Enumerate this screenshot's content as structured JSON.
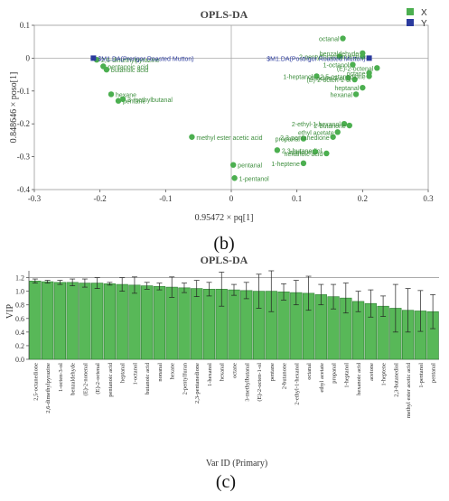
{
  "colors": {
    "points": "#4caf50",
    "bars": "#58b858",
    "bar_stroke": "#2e7d32",
    "highlight": "#2b3b9e",
    "axis": "#333333",
    "label": "#3f8f3f",
    "title": "#444444"
  },
  "panel_b": {
    "title": "OPLS-DA",
    "panel_label": "(b)",
    "legend": [
      {
        "name": "X",
        "color": "#4caf50"
      },
      {
        "name": "Y",
        "color": "#2b3b9e"
      }
    ]
  },
  "panel_c": {
    "title": "OPLS-DA",
    "panel_label": "(c)"
  },
  "chart_data": [
    {
      "type": "scatter",
      "title": "OPLS-DA",
      "xlabel": "0.95472 × pq[1]",
      "ylabel": "0.848646 × poso[1]",
      "xlim": [
        -0.3,
        0.3
      ],
      "ylim": [
        -0.4,
        0.1
      ],
      "xticks": [
        -0.3,
        -0.2,
        -0.1,
        0,
        0.1,
        0.2,
        0.3
      ],
      "yticks": [
        0.1,
        0,
        -0.1,
        -0.2,
        -0.3,
        -0.4
      ],
      "legend": "top-right",
      "points": [
        {
          "label": "2,6-dimethylpyrazine",
          "x": -0.205,
          "y": -0.005,
          "series": "X"
        },
        {
          "label": "pentanoic acid",
          "x": -0.195,
          "y": -0.025,
          "series": "X"
        },
        {
          "label": "butanoic acid",
          "x": -0.19,
          "y": -0.035,
          "series": "X"
        },
        {
          "label": "hexane",
          "x": -0.183,
          "y": -0.11,
          "series": "X"
        },
        {
          "label": "pentane",
          "x": -0.172,
          "y": -0.13,
          "series": "X"
        },
        {
          "label": "3-methylbutanal",
          "x": -0.165,
          "y": -0.125,
          "series": "X"
        },
        {
          "label": "methyl ester acetic acid",
          "x": -0.06,
          "y": -0.24,
          "series": "X"
        },
        {
          "label": "pentanal",
          "x": 0.003,
          "y": -0.325,
          "series": "X"
        },
        {
          "label": "1-pentanol",
          "x": 0.005,
          "y": -0.365,
          "series": "X"
        },
        {
          "label": "2,3-butanediol",
          "x": 0.07,
          "y": -0.28,
          "series": "X"
        },
        {
          "label": "propanal",
          "x": 0.11,
          "y": -0.245,
          "series": "X"
        },
        {
          "label": "1-heptene",
          "x": 0.11,
          "y": -0.32,
          "series": "X"
        },
        {
          "label": "acetone",
          "x": 0.128,
          "y": -0.285,
          "series": "X"
        },
        {
          "label": "hexanoic acid",
          "x": 0.145,
          "y": -0.29,
          "series": "X"
        },
        {
          "label": "2,3-pentanedione",
          "x": 0.155,
          "y": -0.24,
          "series": "X"
        },
        {
          "label": "ethyl acetate",
          "x": 0.162,
          "y": -0.225,
          "series": "X"
        },
        {
          "label": "2-ethyl-1-hexanol",
          "x": 0.172,
          "y": -0.2,
          "series": "X"
        },
        {
          "label": "2-butanone",
          "x": 0.18,
          "y": -0.205,
          "series": "X"
        },
        {
          "label": "octanal",
          "x": 0.17,
          "y": 0.06,
          "series": "X"
        },
        {
          "label": "2-pentylfuran",
          "x": 0.165,
          "y": 0.005,
          "series": "X"
        },
        {
          "label": "nonanal",
          "x": 0.2,
          "y": 0.005,
          "series": "X"
        },
        {
          "label": "1-heptanol",
          "x": 0.13,
          "y": -0.055,
          "series": "X"
        },
        {
          "label": "1-octen-3-ol",
          "x": 0.178,
          "y": -0.06,
          "series": "X"
        },
        {
          "label": "(E)-2-octen-1-ol",
          "x": 0.188,
          "y": -0.065,
          "series": "X"
        },
        {
          "label": "2,5-octanedione",
          "x": 0.21,
          "y": -0.055,
          "series": "X"
        },
        {
          "label": "heptanal",
          "x": 0.2,
          "y": -0.09,
          "series": "X"
        },
        {
          "label": "hexanal",
          "x": 0.19,
          "y": -0.11,
          "series": "X"
        },
        {
          "label": "(E)-2-octenal",
          "x": 0.222,
          "y": -0.03,
          "series": "X"
        },
        {
          "label": "benzaldehyde",
          "x": 0.2,
          "y": 0.015,
          "series": "X"
        },
        {
          "label": "octane",
          "x": 0.21,
          "y": -0.045,
          "series": "X"
        },
        {
          "label": "1-octanol",
          "x": 0.185,
          "y": -0.02,
          "series": "X"
        },
        {
          "label": "$M1.DA(Prerigor Roasted Mutton)",
          "x": -0.21,
          "y": 0.0,
          "series": "Y"
        },
        {
          "label": "$M1.DA(Postrigor Roasted Mutton)",
          "x": 0.21,
          "y": 0.0,
          "series": "Y"
        }
      ]
    },
    {
      "type": "bar",
      "title": "OPLS-DA",
      "xlabel": "Var ID (Primary)",
      "ylabel": "VIP",
      "ylim": [
        0,
        1.3
      ],
      "yticks": [
        0,
        0.2,
        0.4,
        0.6,
        0.8,
        1.0,
        1.2
      ],
      "reference_line": 1.2,
      "categories": [
        "2,5-octanedione",
        "2,6-dimethylpyrazine",
        "1-octen-3-ol",
        "benzaldehyde",
        "(E)-2-nonenal",
        "(E)-2-octenal",
        "pentanoic acid",
        "heptanal",
        "1-octanol",
        "butanoic acid",
        "nonanal",
        "hexane",
        "2-pentylfuran",
        "2,3-pentanedione",
        "1-hexanol",
        "hexanal",
        "octane",
        "3-methylbutanal",
        "(E)-2-octen-1-ol",
        "pentane",
        "2-butanone",
        "2-ethyl-1-hexanol",
        "octanal",
        "ethyl acetate",
        "propanal",
        "1-heptanol",
        "hexanoic acid",
        "acetone",
        "1-heptene",
        "2,3-butanediol",
        "methyl ester acetic acid",
        "1-pentanol",
        "pentanal"
      ],
      "values": [
        1.15,
        1.14,
        1.13,
        1.13,
        1.12,
        1.12,
        1.11,
        1.1,
        1.09,
        1.08,
        1.07,
        1.06,
        1.05,
        1.04,
        1.03,
        1.03,
        1.02,
        1.01,
        1.0,
        1.0,
        0.99,
        0.98,
        0.97,
        0.95,
        0.92,
        0.9,
        0.85,
        0.82,
        0.78,
        0.75,
        0.72,
        0.71,
        0.7
      ],
      "errors": [
        0.03,
        0.02,
        0.03,
        0.05,
        0.06,
        0.08,
        0.02,
        0.1,
        0.12,
        0.05,
        0.05,
        0.15,
        0.07,
        0.12,
        0.1,
        0.25,
        0.08,
        0.12,
        0.25,
        0.3,
        0.12,
        0.18,
        0.25,
        0.15,
        0.18,
        0.22,
        0.15,
        0.2,
        0.15,
        0.35,
        0.32,
        0.3,
        0.25
      ]
    }
  ]
}
